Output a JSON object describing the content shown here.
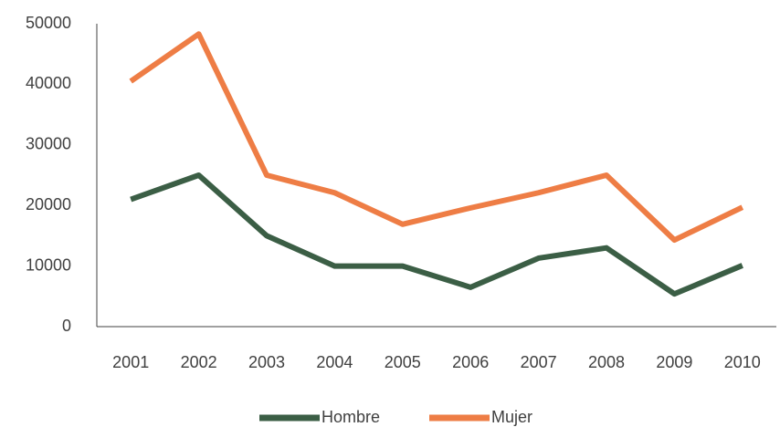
{
  "chart_data": {
    "type": "line",
    "categories": [
      "2001",
      "2002",
      "2003",
      "2004",
      "2005",
      "2006",
      "2007",
      "2008",
      "2009",
      "2010"
    ],
    "series": [
      {
        "name": "Hombre",
        "color": "#3b5e45",
        "values": [
          21000,
          25000,
          15000,
          10000,
          10000,
          6500,
          11300,
          13000,
          5400,
          10100
        ]
      },
      {
        "name": "Mujer",
        "color": "#ee7d45",
        "values": [
          40500,
          48300,
          25000,
          22100,
          16900,
          19600,
          22100,
          25000,
          14300,
          19700
        ]
      }
    ],
    "ylim": [
      0,
      50000
    ],
    "yticks": [
      0,
      10000,
      20000,
      30000,
      40000,
      50000
    ],
    "grid": false,
    "legend": "bottom"
  }
}
